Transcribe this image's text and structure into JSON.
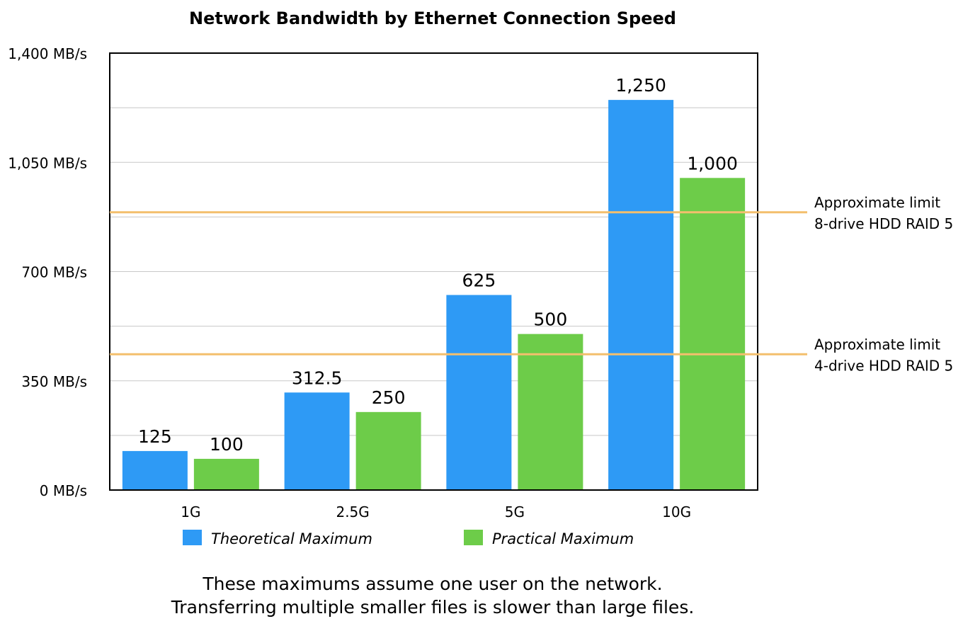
{
  "chart_data": {
    "type": "bar",
    "title": "Network Bandwidth by Ethernet Connection Speed",
    "categories": [
      "1G",
      "2.5G",
      "5G",
      "10G"
    ],
    "series": [
      {
        "name": "Theoretical Maximum",
        "color": "#2e9af5",
        "values": [
          125,
          312.5,
          625,
          1250
        ],
        "labels": [
          "125",
          "312.5",
          "625",
          "1,250"
        ]
      },
      {
        "name": "Practical Maximum",
        "color": "#6dcc49",
        "values": [
          100,
          250,
          500,
          1000
        ],
        "labels": [
          "100",
          "250",
          "500",
          "1,000"
        ]
      }
    ],
    "ylim": [
      0,
      1400
    ],
    "yticks": [
      {
        "value": 0,
        "label": "0 MB/s"
      },
      {
        "value": 350,
        "label": "350 MB/s"
      },
      {
        "value": 700,
        "label": "700 MB/s"
      },
      {
        "value": 1050,
        "label": "1,050 MB/s"
      },
      {
        "value": 1400,
        "label": "1,400 MB/s"
      }
    ],
    "gridlines": [
      175,
      350,
      525,
      700,
      875,
      1050,
      1225
    ],
    "grid": true,
    "reference_lines": [
      {
        "value": 890,
        "color": "#f3bf6d",
        "lines": [
          "Approximate limit",
          "8-drive HDD RAID 5"
        ]
      },
      {
        "value": 435,
        "color": "#f3bf6d",
        "lines": [
          "Approximate limit",
          "4-drive HDD RAID 5"
        ]
      }
    ],
    "legend_position": "bottom",
    "footnotes": [
      "These maximums assume one user on the network.",
      "Transferring multiple smaller files is slower than large files."
    ]
  }
}
